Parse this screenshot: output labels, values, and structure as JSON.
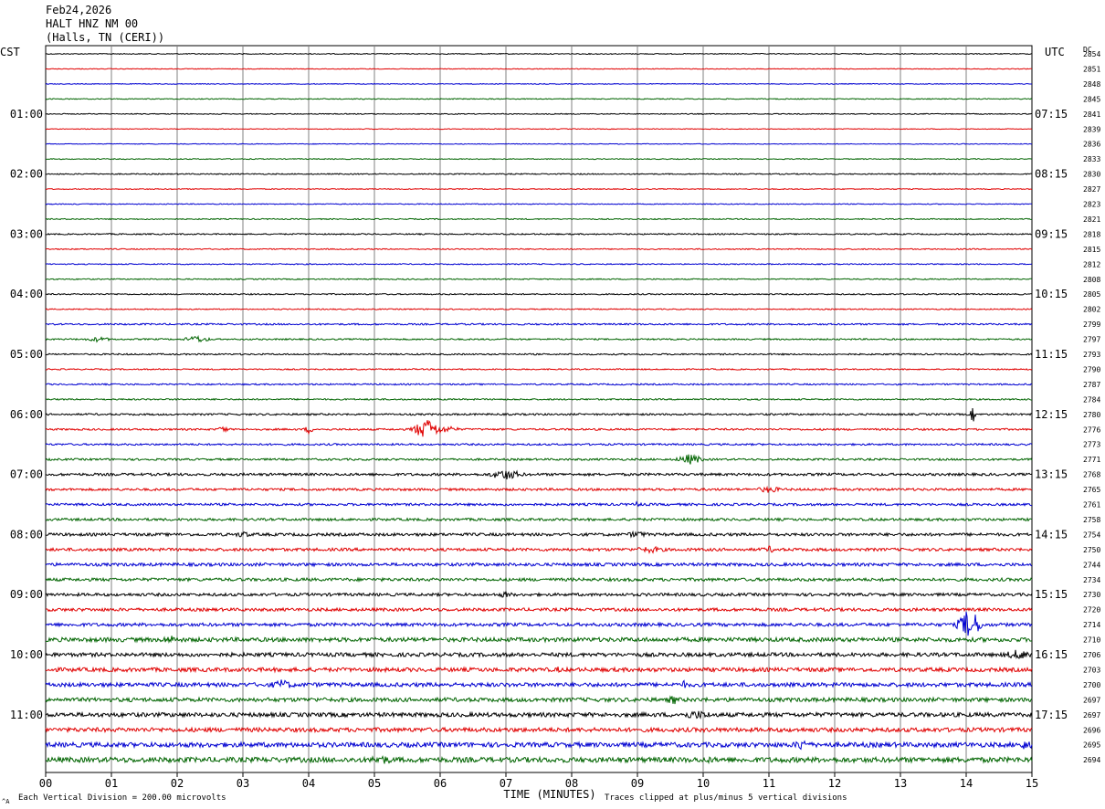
{
  "header": {
    "date": "Feb24,2026",
    "station": "HALT HNZ NM 00",
    "location": "(Halls, TN (CERI))"
  },
  "chart_data": {
    "type": "line",
    "title": "",
    "xlabel": "TIME (MINUTES)",
    "left_timezone": "CST",
    "right_timezone": "UTC",
    "dc_header": "DC",
    "xlim": [
      0,
      15
    ],
    "x_ticks": [
      "00",
      "01",
      "02",
      "03",
      "04",
      "05",
      "06",
      "07",
      "08",
      "09",
      "10",
      "11",
      "12",
      "13",
      "14",
      "15"
    ],
    "left_hour_labels": [
      "01:00",
      "02:00",
      "03:00",
      "04:00",
      "05:00",
      "06:00",
      "07:00",
      "08:00",
      "09:00",
      "10:00",
      "11:00"
    ],
    "right_hour_labels": [
      "07:15",
      "08:15",
      "09:15",
      "10:15",
      "11:15",
      "12:15",
      "13:15",
      "14:15",
      "15:15",
      "16:15",
      "17:15"
    ],
    "trace_colors": [
      "#000000",
      "#e00000",
      "#0000d0",
      "#006400"
    ],
    "dc_values": [
      "2854",
      "2851",
      "2848",
      "2845",
      "2841",
      "2839",
      "2836",
      "2833",
      "2830",
      "2827",
      "2823",
      "2821",
      "2818",
      "2815",
      "2812",
      "2808",
      "2805",
      "2802",
      "2799",
      "2797",
      "2793",
      "2790",
      "2787",
      "2784",
      "2780",
      "2776",
      "2773",
      "2771",
      "2768",
      "2765",
      "2761",
      "2758",
      "2754",
      "2750",
      "2744",
      "2734",
      "2730",
      "2720",
      "2714",
      "2710",
      "2706",
      "2703",
      "2700",
      "2697",
      "2697",
      "2696",
      "2695",
      "2694"
    ],
    "trace_noise_levels": [
      0.5,
      0.4,
      0.4,
      0.5,
      0.5,
      0.4,
      0.4,
      0.5,
      0.6,
      0.5,
      0.5,
      0.6,
      0.7,
      0.6,
      0.6,
      0.6,
      0.7,
      0.6,
      0.9,
      0.8,
      0.8,
      0.7,
      0.8,
      0.8,
      1.0,
      1.0,
      1.0,
      1.1,
      1.4,
      1.3,
      1.3,
      1.4,
      1.6,
      1.6,
      1.7,
      1.7,
      1.6,
      1.7,
      1.8,
      2.3,
      2.1,
      2.2,
      2.2,
      2.2,
      2.3,
      2.3,
      2.6,
      2.8
    ],
    "events": [
      {
        "trace": 19,
        "minute": 0.8,
        "amplitude": 3,
        "duration": 0.3
      },
      {
        "trace": 19,
        "minute": 2.3,
        "amplitude": 4,
        "duration": 0.3
      },
      {
        "trace": 24,
        "minute": 14.1,
        "amplitude": 10,
        "duration": 0.05
      },
      {
        "trace": 25,
        "minute": 2.7,
        "amplitude": 5,
        "duration": 0.1
      },
      {
        "trace": 25,
        "minute": 4.0,
        "amplitude": 5,
        "duration": 0.1
      },
      {
        "trace": 25,
        "minute": 5.8,
        "amplitude": 12,
        "duration": 0.3
      },
      {
        "trace": 25,
        "minute": 6.1,
        "amplitude": 4,
        "duration": 0.3
      },
      {
        "trace": 27,
        "minute": 9.8,
        "amplitude": 6,
        "duration": 0.3
      },
      {
        "trace": 28,
        "minute": 7.0,
        "amplitude": 6,
        "duration": 0.4
      },
      {
        "trace": 29,
        "minute": 11.0,
        "amplitude": 4,
        "duration": 0.3
      },
      {
        "trace": 30,
        "minute": 9.0,
        "amplitude": 4,
        "duration": 0.1
      },
      {
        "trace": 32,
        "minute": 3.0,
        "amplitude": 4,
        "duration": 0.2
      },
      {
        "trace": 32,
        "minute": 9.0,
        "amplitude": 4,
        "duration": 0.3
      },
      {
        "trace": 33,
        "minute": 9.2,
        "amplitude": 4,
        "duration": 0.4
      },
      {
        "trace": 33,
        "minute": 11.0,
        "amplitude": 4,
        "duration": 0.2
      },
      {
        "trace": 36,
        "minute": 7.0,
        "amplitude": 4,
        "duration": 0.2
      },
      {
        "trace": 38,
        "minute": 14.05,
        "amplitude": 18,
        "duration": 0.25
      },
      {
        "trace": 39,
        "minute": 1.9,
        "amplitude": 5,
        "duration": 0.3
      },
      {
        "trace": 40,
        "minute": 14.8,
        "amplitude": 6,
        "duration": 0.4
      },
      {
        "trace": 41,
        "minute": 7.8,
        "amplitude": 4,
        "duration": 0.1
      },
      {
        "trace": 42,
        "minute": 3.6,
        "amplitude": 6,
        "duration": 0.3
      },
      {
        "trace": 42,
        "minute": 9.7,
        "amplitude": 5,
        "duration": 0.1
      },
      {
        "trace": 43,
        "minute": 9.55,
        "amplitude": 6,
        "duration": 0.15
      },
      {
        "trace": 44,
        "minute": 9.9,
        "amplitude": 5,
        "duration": 0.5
      },
      {
        "trace": 46,
        "minute": 11.5,
        "amplitude": 7,
        "duration": 0.2
      },
      {
        "trace": 46,
        "minute": 14.9,
        "amplitude": 6,
        "duration": 0.2
      },
      {
        "trace": 47,
        "minute": 5.1,
        "amplitude": 6,
        "duration": 0.3
      },
      {
        "trace": 47,
        "minute": 10.1,
        "amplitude": 4,
        "duration": 0.2
      }
    ]
  },
  "footer": {
    "vertical_division": "Each Vertical Division =  200.00 microvolts",
    "clip_note": "Traces clipped at plus/minus 5 vertical divisions",
    "corner_mark": "^A"
  }
}
